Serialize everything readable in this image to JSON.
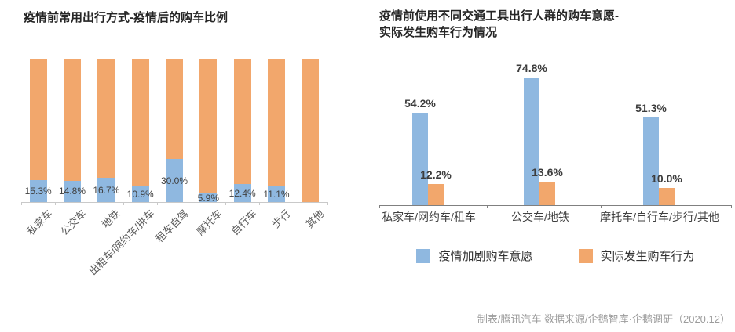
{
  "colors": {
    "bar_blue": "#8FB8E0",
    "bar_orange": "#F2A76C",
    "axis_left": "#C9C9C9",
    "axis_right": "#808080",
    "value_label": "#404040",
    "title_text": "#262626",
    "category_text": "#595959",
    "footer_text": "#9C9C9C"
  },
  "chart_data": [
    {
      "type": "bar",
      "subtype": "100%-stacked-column",
      "title": "疫情前常用出行方式-疫情后的购车比例",
      "categories": [
        "私家车",
        "公交车",
        "地铁",
        "出租车/网约车/拼车",
        "租车自驾",
        "摩托车",
        "自行车",
        "步行",
        "其他"
      ],
      "series": [
        {
          "name": "疫情后的购车比例",
          "color": "blue",
          "values": [
            15.3,
            14.8,
            16.7,
            10.9,
            30.0,
            5.9,
            12.4,
            11.1,
            null
          ],
          "labels": [
            "15.3%",
            "14.8%",
            "16.7%",
            "10.9%",
            "30.0%",
            "5.9%",
            "12.4%",
            "11.1%",
            ""
          ]
        },
        {
          "name": "",
          "color": "orange",
          "remainder_to": 100
        }
      ],
      "ylim": [
        0,
        100
      ],
      "grid": false,
      "legend": "none",
      "value_label_position": "inside-center"
    },
    {
      "type": "bar",
      "subtype": "grouped-column",
      "title": "疫情前使用不同交通工具出行人群的购车意愿-实际发生购车行为情况",
      "title_lines": [
        "疫情前使用不同交通工具出行人群的购车意愿-",
        "实际发生购车行为情况"
      ],
      "categories": [
        "私家车/网约车/租车",
        "公交车/地铁",
        "摩托车/自行车/步行/其他"
      ],
      "series": [
        {
          "name": "疫情加剧购车意愿",
          "color": "blue",
          "values": [
            54.2,
            74.8,
            51.3
          ],
          "labels": [
            "54.2%",
            "74.8%",
            "51.3%"
          ]
        },
        {
          "name": "实际发生购车行为",
          "color": "orange",
          "values": [
            12.2,
            13.6,
            10.0
          ],
          "labels": [
            "12.2%",
            "13.6%",
            "10.0%"
          ]
        }
      ],
      "ylim": [
        0,
        80
      ],
      "grid": false,
      "legend_position": "bottom",
      "value_label_position": "outside-end"
    }
  ],
  "footer": {
    "source_note": "制表/腾讯汽车 数据来源/企鹅智库·企鹅调研（2020.12）"
  }
}
